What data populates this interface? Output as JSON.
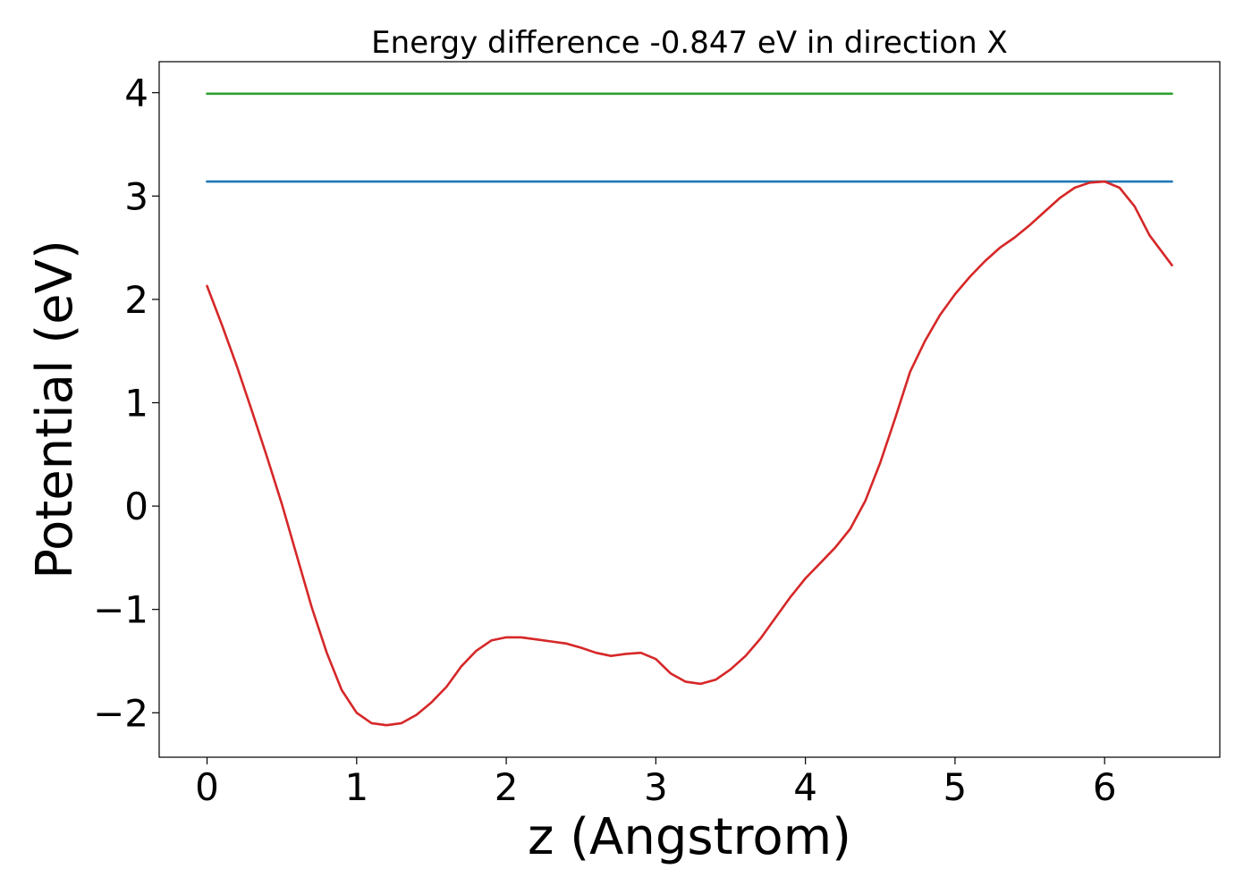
{
  "chart_data": {
    "type": "line",
    "title": "Energy difference -0.847 eV in direction X",
    "xlabel": "z (Angstrom)",
    "ylabel": "Potential (eV)",
    "xlim": [
      -0.32,
      6.77
    ],
    "ylim": [
      -2.43,
      4.3
    ],
    "grid": false,
    "xticks": [
      0,
      1,
      2,
      3,
      4,
      5,
      6
    ],
    "xtick_labels": [
      "0",
      "1",
      "2",
      "3",
      "4",
      "5",
      "6"
    ],
    "yticks": [
      -2,
      -1,
      0,
      1,
      2,
      3,
      4
    ],
    "ytick_labels": [
      "−2",
      "−1",
      "0",
      "1",
      "2",
      "3",
      "4"
    ],
    "series": [
      {
        "color": "#2ca02c",
        "x": [
          0,
          6.45
        ],
        "y": [
          3.99,
          3.99
        ]
      },
      {
        "color": "#1f77b4",
        "x": [
          0,
          6.45
        ],
        "y": [
          3.14,
          3.14
        ]
      },
      {
        "color": "#d62728",
        "x": [
          0,
          0.1,
          0.2,
          0.3,
          0.4,
          0.5,
          0.6,
          0.7,
          0.8,
          0.9,
          1.0,
          1.1,
          1.2,
          1.3,
          1.4,
          1.5,
          1.6,
          1.7,
          1.8,
          1.9,
          2.0,
          2.1,
          2.2,
          2.3,
          2.4,
          2.5,
          2.6,
          2.7,
          2.8,
          2.9,
          3.0,
          3.1,
          3.2,
          3.3,
          3.4,
          3.5,
          3.6,
          3.7,
          3.8,
          3.9,
          4.0,
          4.1,
          4.2,
          4.3,
          4.4,
          4.5,
          4.6,
          4.7,
          4.8,
          4.9,
          5.0,
          5.1,
          5.2,
          5.3,
          5.4,
          5.5,
          5.6,
          5.7,
          5.8,
          5.9,
          6.0,
          6.1,
          6.2,
          6.3,
          6.45
        ],
        "y": [
          2.13,
          1.75,
          1.35,
          0.92,
          0.48,
          0.02,
          -0.48,
          -0.98,
          -1.42,
          -1.78,
          -2.0,
          -2.1,
          -2.12,
          -2.1,
          -2.02,
          -1.9,
          -1.75,
          -1.55,
          -1.4,
          -1.3,
          -1.27,
          -1.27,
          -1.29,
          -1.31,
          -1.33,
          -1.37,
          -1.42,
          -1.45,
          -1.43,
          -1.42,
          -1.48,
          -1.62,
          -1.7,
          -1.72,
          -1.68,
          -1.58,
          -1.45,
          -1.28,
          -1.08,
          -0.88,
          -0.7,
          -0.55,
          -0.4,
          -0.22,
          0.05,
          0.42,
          0.85,
          1.3,
          1.6,
          1.85,
          2.05,
          2.22,
          2.37,
          2.5,
          2.6,
          2.72,
          2.85,
          2.98,
          3.08,
          3.13,
          3.14,
          3.08,
          2.9,
          2.62,
          2.33
        ]
      }
    ]
  }
}
